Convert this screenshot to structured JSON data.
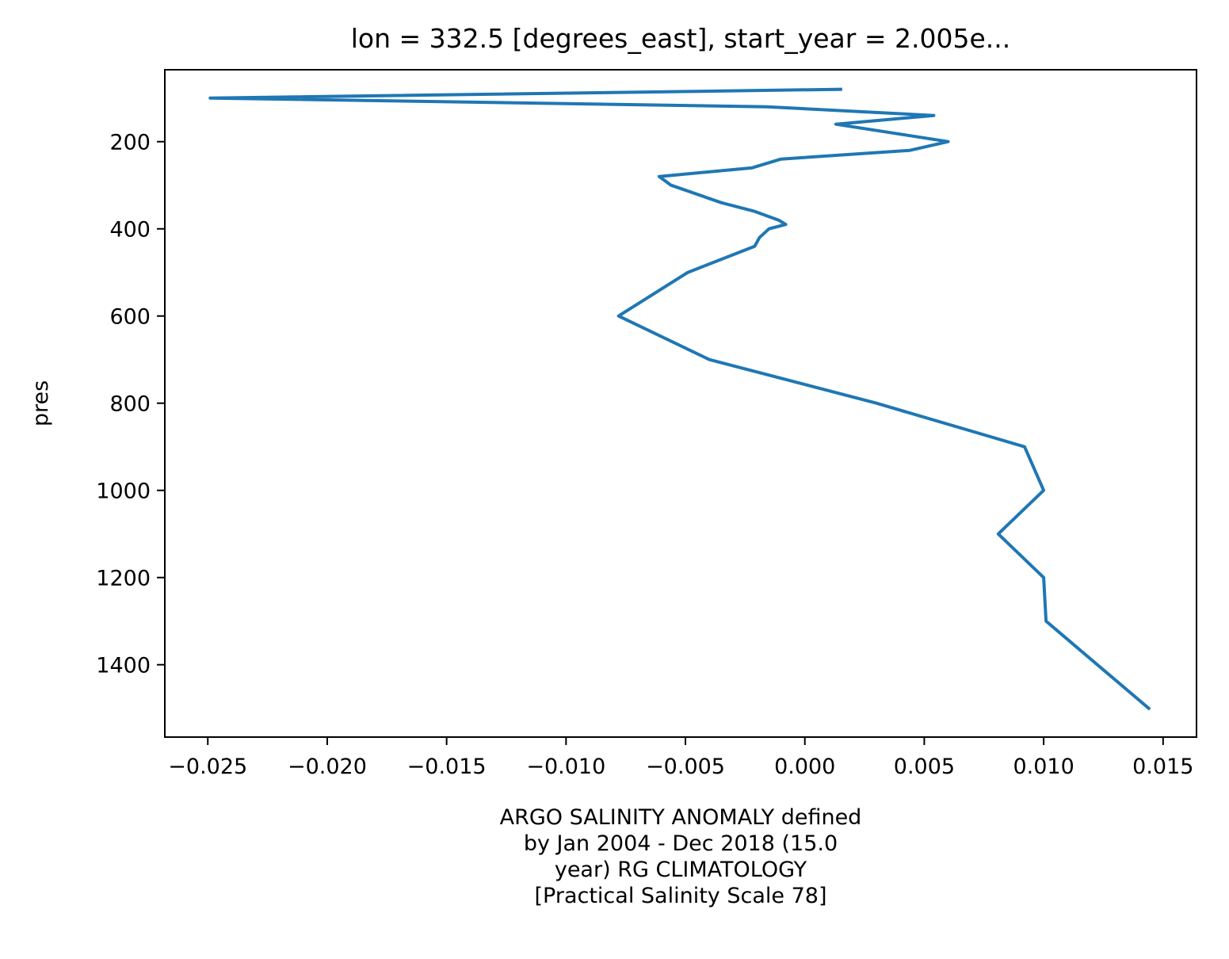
{
  "chart_data": {
    "type": "line",
    "title": "lon = 332.5 [degrees_east], start_year = 2.005e...",
    "xlabel_lines": [
      "ARGO SALINITY ANOMALY defined",
      "by Jan 2004 - Dec 2018 (15.0",
      "year) RG CLIMATOLOGY",
      "[Practical Salinity Scale 78]"
    ],
    "ylabel": "pres",
    "xlim": [
      -0.0268,
      0.0164
    ],
    "ylim": [
      1566,
      35
    ],
    "y_inverted": true,
    "xticks": [
      -0.025,
      -0.02,
      -0.015,
      -0.01,
      -0.005,
      0.0,
      0.005,
      0.01,
      0.015
    ],
    "xtick_labels": [
      "−0.025",
      "−0.020",
      "−0.015",
      "−0.010",
      "−0.005",
      "0.000",
      "0.005",
      "0.010",
      "0.015"
    ],
    "yticks": [
      200,
      400,
      600,
      800,
      1000,
      1200,
      1400
    ],
    "ytick_labels": [
      "200",
      "400",
      "600",
      "800",
      "1000",
      "1200",
      "1400"
    ],
    "grid": false,
    "series": [
      {
        "color": "#1f77b4",
        "x": [
          0.0015,
          -0.0249,
          -0.0016,
          0.0054,
          0.0013,
          0.006,
          0.0044,
          -0.001,
          -0.0022,
          -0.0061,
          -0.0056,
          -0.0035,
          -0.0021,
          -0.0011,
          -0.0008,
          -0.0015,
          -0.0019,
          -0.0021,
          -0.0049,
          -0.0078,
          -0.004,
          0.003,
          0.0092,
          0.01,
          0.0081,
          0.01,
          0.0101,
          0.0144
        ],
        "y": [
          80,
          100,
          120,
          140,
          160,
          200,
          220,
          240,
          260,
          280,
          300,
          340,
          360,
          380,
          390,
          400,
          420,
          440,
          500,
          600,
          700,
          800,
          900,
          1000,
          1100,
          1200,
          1300,
          1500
        ]
      }
    ]
  }
}
